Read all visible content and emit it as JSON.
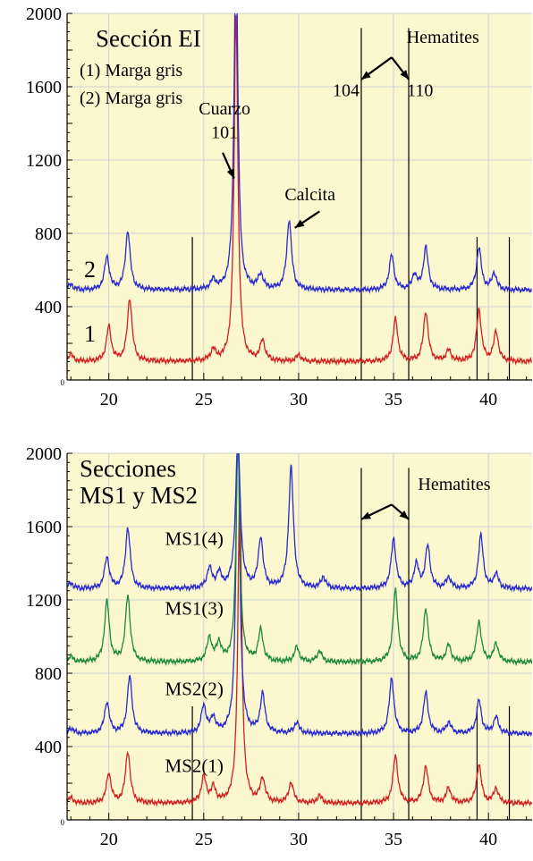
{
  "chart_data": [
    {
      "type": "line",
      "title": "Sección EI",
      "legend": [
        "(1) Marga gris",
        "(2) Marga gris"
      ],
      "xlim": [
        17.8,
        42.3
      ],
      "ylim": [
        0,
        2000
      ],
      "xticks": [
        "20",
        "25",
        "30",
        "35",
        "40"
      ],
      "xtick_values": [
        20,
        25,
        30,
        35,
        40
      ],
      "yticks": [
        "2000",
        "1600",
        "1200",
        "800",
        "400"
      ],
      "ytick_values": [
        2000,
        1600,
        1200,
        800,
        400
      ],
      "vlines_full": [
        33.3,
        35.8
      ],
      "vlines_short": [
        24.4,
        39.4,
        41.1
      ],
      "series": [
        {
          "name": "1",
          "color": "#d42020",
          "baseline": 100,
          "peaks": [
            [
              18.0,
              40
            ],
            [
              20.0,
              190
            ],
            [
              21.1,
              340
            ],
            [
              25.5,
              60
            ],
            [
              26.7,
              1900
            ],
            [
              28.1,
              110
            ],
            [
              30.0,
              35
            ],
            [
              35.1,
              230
            ],
            [
              36.7,
              270
            ],
            [
              37.9,
              60
            ],
            [
              39.5,
              280
            ],
            [
              40.4,
              160
            ]
          ]
        },
        {
          "name": "2",
          "color": "#2a2ad0",
          "baseline": 490,
          "peaks": [
            [
              18.0,
              30
            ],
            [
              19.9,
              180
            ],
            [
              21.0,
              320
            ],
            [
              25.5,
              50
            ],
            [
              26.7,
              1900
            ],
            [
              28.0,
              80
            ],
            [
              29.5,
              380
            ],
            [
              34.9,
              190
            ],
            [
              36.1,
              80
            ],
            [
              36.7,
              230
            ],
            [
              39.5,
              230
            ],
            [
              40.3,
              90
            ]
          ]
        }
      ],
      "annotations": [
        {
          "text": "Cuarzo",
          "x": 26.1,
          "y": 1450
        },
        {
          "text": "101",
          "x": 26.1,
          "y": 1320
        },
        {
          "text": "Calcita",
          "x": 30.6,
          "y": 980
        },
        {
          "text": "Hematites",
          "x": 37.6,
          "y": 1840
        },
        {
          "text": "104",
          "x": 32.5,
          "y": 1550
        },
        {
          "text": "110",
          "x": 36.4,
          "y": 1550
        }
      ],
      "series_labels": [
        {
          "text": "2",
          "x": 19.0,
          "y": 560
        },
        {
          "text": "1",
          "x": 19.0,
          "y": 210
        }
      ]
    },
    {
      "type": "line",
      "title": [
        "Secciones",
        "MS1 y MS2"
      ],
      "xlim": [
        17.8,
        42.3
      ],
      "ylim": [
        0,
        2000
      ],
      "xticks": [
        "20",
        "25",
        "30",
        "35",
        "40"
      ],
      "xtick_values": [
        20,
        25,
        30,
        35,
        40
      ],
      "yticks": [
        "2000",
        "1600",
        "1200",
        "800",
        "400"
      ],
      "ytick_values": [
        2000,
        1600,
        1200,
        800,
        400
      ],
      "vlines_full": [
        33.3,
        35.8
      ],
      "vlines_short": [
        24.4,
        39.4,
        41.1
      ],
      "series": [
        {
          "name": "MS2(1)",
          "color": "#d42020",
          "baseline": 90,
          "peaks": [
            [
              18.0,
              30
            ],
            [
              20.0,
              160
            ],
            [
              21.0,
              280
            ],
            [
              25.0,
              140
            ],
            [
              25.5,
              80
            ],
            [
              26.9,
              1710
            ],
            [
              28.1,
              130
            ],
            [
              29.6,
              110
            ],
            [
              31.1,
              40
            ],
            [
              35.1,
              260
            ],
            [
              36.7,
              200
            ],
            [
              37.9,
              80
            ],
            [
              39.5,
              210
            ],
            [
              40.4,
              80
            ]
          ]
        },
        {
          "name": "MS2(2)",
          "color": "#2a2ad0",
          "baseline": 470,
          "peaks": [
            [
              18.0,
              30
            ],
            [
              19.9,
              170
            ],
            [
              21.1,
              310
            ],
            [
              25.0,
              150
            ],
            [
              25.5,
              80
            ],
            [
              26.8,
              1700
            ],
            [
              28.1,
              210
            ],
            [
              29.9,
              60
            ],
            [
              34.9,
              300
            ],
            [
              36.7,
              220
            ],
            [
              37.9,
              60
            ],
            [
              39.5,
              180
            ],
            [
              40.4,
              90
            ]
          ]
        },
        {
          "name": "MS1(3)",
          "color": "#1f8a3a",
          "baseline": 860,
          "peaks": [
            [
              18.0,
              30
            ],
            [
              19.9,
              330
            ],
            [
              21.0,
              360
            ],
            [
              25.3,
              130
            ],
            [
              25.8,
              100
            ],
            [
              26.8,
              1200
            ],
            [
              28.0,
              170
            ],
            [
              29.9,
              80
            ],
            [
              31.1,
              60
            ],
            [
              35.1,
              390
            ],
            [
              36.7,
              290
            ],
            [
              37.9,
              90
            ],
            [
              39.5,
              220
            ],
            [
              40.4,
              100
            ]
          ]
        },
        {
          "name": "MS1(4)",
          "color": "#2a2ad0",
          "baseline": 1260,
          "peaks": [
            [
              18.0,
              30
            ],
            [
              19.9,
              170
            ],
            [
              21.0,
              330
            ],
            [
              25.3,
              110
            ],
            [
              25.8,
              80
            ],
            [
              26.8,
              800
            ],
            [
              28.0,
              270
            ],
            [
              29.6,
              660
            ],
            [
              31.3,
              60
            ],
            [
              35.0,
              270
            ],
            [
              36.2,
              130
            ],
            [
              36.8,
              230
            ],
            [
              37.9,
              60
            ],
            [
              39.6,
              290
            ],
            [
              40.4,
              80
            ]
          ]
        }
      ],
      "annotations": [
        {
          "text": "Hematites",
          "x": 38.2,
          "y": 1800
        }
      ],
      "series_labels": [
        {
          "text": "MS1(4)",
          "x": 24.5,
          "y": 1500
        },
        {
          "text": "MS1(3)",
          "x": 24.5,
          "y": 1120
        },
        {
          "text": "MS2(2)",
          "x": 24.5,
          "y": 680
        },
        {
          "text": "MS2(1)",
          "x": 24.5,
          "y": 260
        }
      ]
    }
  ]
}
